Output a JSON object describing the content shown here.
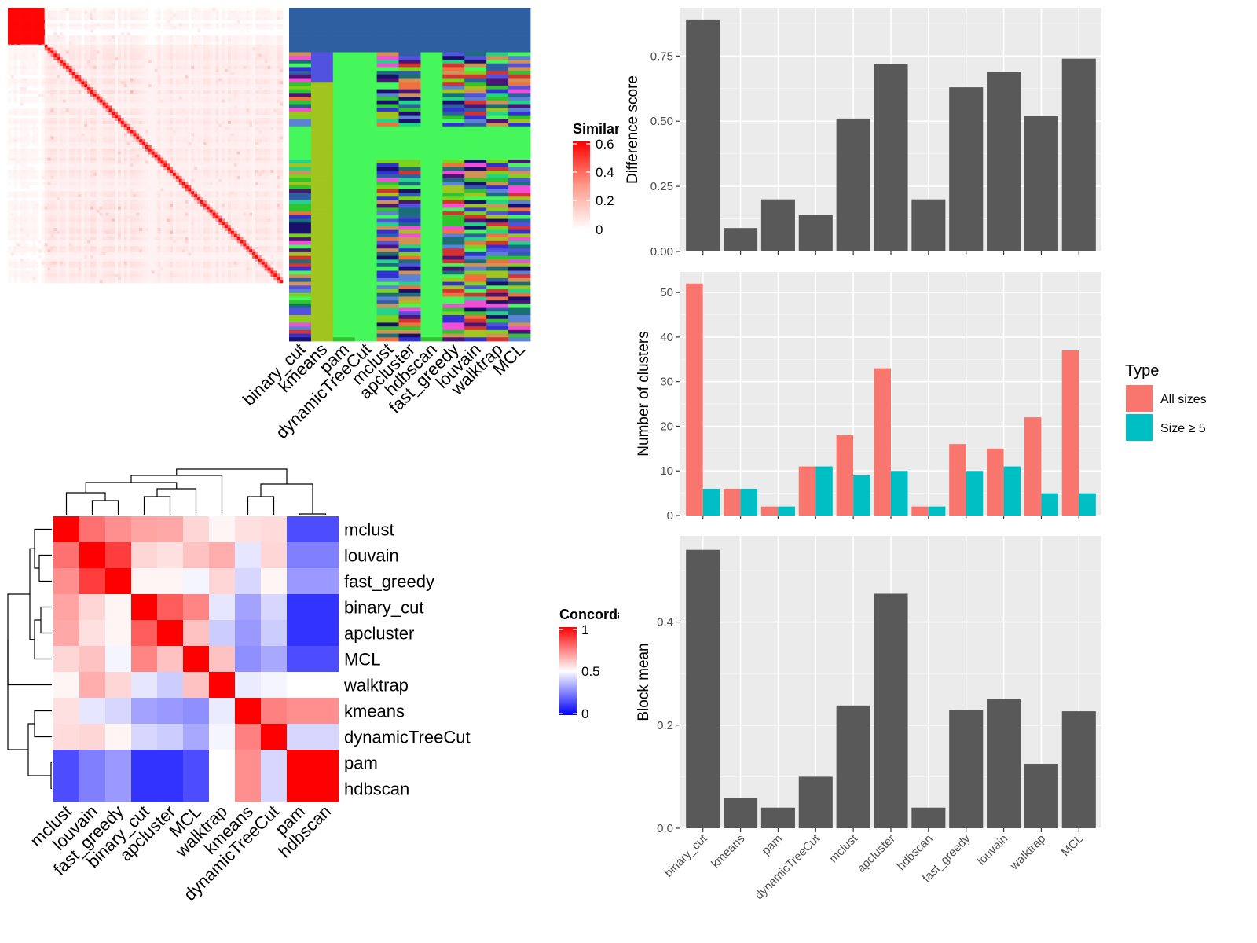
{
  "chart_data": [
    {
      "type": "heatmap",
      "name": "similarity_matrix",
      "legend": {
        "title": "Similarity",
        "ticks": [
          "0.6",
          "0.4",
          "0.2",
          "0"
        ],
        "colors": [
          "#ffffff",
          "#ff0000"
        ]
      }
    },
    {
      "type": "heatmap",
      "name": "cluster_assignment_annotation",
      "columns": [
        "binary_cut",
        "kmeans",
        "pam",
        "dynamicTreeCut",
        "mclust",
        "apcluster",
        "hdbscan",
        "fast_greedy",
        "louvain",
        "walktrap",
        "MCL"
      ]
    },
    {
      "type": "heatmap",
      "name": "concordance",
      "legend": {
        "title": "Concordance",
        "ticks": [
          "1",
          "0.5",
          "0"
        ],
        "colors": [
          "#0000ff",
          "#ffffff",
          "#ff0000"
        ]
      },
      "rows": [
        "mclust",
        "louvain",
        "fast_greedy",
        "binary_cut",
        "apcluster",
        "MCL",
        "walktrap",
        "kmeans",
        "dynamicTreeCut",
        "pam",
        "hdbscan"
      ],
      "columns": [
        "mclust",
        "louvain",
        "fast_greedy",
        "binary_cut",
        "apcluster",
        "MCL",
        "walktrap",
        "kmeans",
        "dynamicTreeCut",
        "pam",
        "hdbscan"
      ],
      "values": [
        [
          1.0,
          0.78,
          0.72,
          0.68,
          0.67,
          0.58,
          0.52,
          0.56,
          0.57,
          0.15,
          0.15
        ],
        [
          0.78,
          1.0,
          0.88,
          0.58,
          0.56,
          0.62,
          0.66,
          0.45,
          0.58,
          0.25,
          0.25
        ],
        [
          0.72,
          0.88,
          1.0,
          0.52,
          0.52,
          0.48,
          0.58,
          0.42,
          0.52,
          0.3,
          0.3
        ],
        [
          0.68,
          0.58,
          0.52,
          1.0,
          0.82,
          0.74,
          0.45,
          0.32,
          0.42,
          0.1,
          0.1
        ],
        [
          0.67,
          0.56,
          0.52,
          0.82,
          1.0,
          0.62,
          0.4,
          0.3,
          0.4,
          0.1,
          0.1
        ],
        [
          0.58,
          0.62,
          0.48,
          0.74,
          0.62,
          1.0,
          0.62,
          0.28,
          0.33,
          0.15,
          0.15
        ],
        [
          0.52,
          0.66,
          0.58,
          0.45,
          0.4,
          0.62,
          1.0,
          0.46,
          0.48,
          0.5,
          0.5
        ],
        [
          0.56,
          0.45,
          0.42,
          0.32,
          0.3,
          0.28,
          0.46,
          1.0,
          0.75,
          0.72,
          0.72
        ],
        [
          0.57,
          0.58,
          0.52,
          0.42,
          0.4,
          0.33,
          0.48,
          0.75,
          1.0,
          0.42,
          0.42
        ],
        [
          0.15,
          0.25,
          0.3,
          0.1,
          0.1,
          0.15,
          0.5,
          0.72,
          0.42,
          1.0,
          1.0
        ],
        [
          0.15,
          0.25,
          0.3,
          0.1,
          0.1,
          0.15,
          0.5,
          0.72,
          0.42,
          1.0,
          1.0
        ]
      ]
    },
    {
      "type": "bar",
      "name": "difference_score",
      "categories": [
        "binary_cut",
        "kmeans",
        "pam",
        "dynamicTreeCut",
        "mclust",
        "apcluster",
        "hdbscan",
        "fast_greedy",
        "louvain",
        "walktrap",
        "MCL"
      ],
      "values": [
        0.89,
        0.09,
        0.2,
        0.14,
        0.51,
        0.72,
        0.2,
        0.63,
        0.69,
        0.52,
        0.74
      ],
      "ylabel": "Difference score",
      "ylim": [
        0,
        0.935
      ],
      "yticks": [
        "0.00",
        "0.25",
        "0.50",
        "0.75"
      ],
      "color": "#595959"
    },
    {
      "type": "bar",
      "name": "number_of_clusters",
      "categories": [
        "binary_cut",
        "kmeans",
        "pam",
        "dynamicTreeCut",
        "mclust",
        "apcluster",
        "hdbscan",
        "fast_greedy",
        "louvain",
        "walktrap",
        "MCL"
      ],
      "series": [
        {
          "name": "All sizes",
          "color": "#f8766d",
          "values": [
            52,
            6,
            2,
            11,
            18,
            33,
            2,
            16,
            15,
            22,
            37
          ]
        },
        {
          "name": "Size ≥ 5",
          "color": "#00bfc4",
          "values": [
            6,
            6,
            2,
            11,
            9,
            10,
            2,
            10,
            11,
            5,
            5
          ]
        }
      ],
      "ylabel": "Number of clusters",
      "ylim": [
        0,
        54.6
      ],
      "yticks": [
        "0",
        "10",
        "20",
        "30",
        "40",
        "50"
      ],
      "legend": {
        "title": "Type",
        "position": "right"
      }
    },
    {
      "type": "bar",
      "name": "block_mean",
      "categories": [
        "binary_cut",
        "kmeans",
        "pam",
        "dynamicTreeCut",
        "mclust",
        "apcluster",
        "hdbscan",
        "fast_greedy",
        "louvain",
        "walktrap",
        "MCL"
      ],
      "values": [
        0.54,
        0.058,
        0.04,
        0.1,
        0.238,
        0.455,
        0.04,
        0.23,
        0.25,
        0.125,
        0.227
      ],
      "ylabel": "Block mean",
      "ylim": [
        0,
        0.567
      ],
      "yticks": [
        "0.0",
        "0.2",
        "0.4"
      ],
      "xlabels": [
        "binary_cut",
        "kmeans",
        "pam",
        "dynamicTreeCut",
        "mclust",
        "apcluster",
        "hdbscan",
        "fast_greedy",
        "louvain",
        "walktrap",
        "MCL"
      ],
      "color": "#595959"
    }
  ],
  "annotation_palette": [
    "#2e5fa0",
    "#f44dd8",
    "#a1c41e",
    "#46f75b",
    "#cf9355",
    "#5252e0",
    "#3131d3",
    "#4b1577",
    "#23d38a",
    "#1a6e78",
    "#f0703e",
    "#1a0f6b",
    "#d63232",
    "#2ec42e",
    "#5b82d3",
    "#7bd31e"
  ]
}
